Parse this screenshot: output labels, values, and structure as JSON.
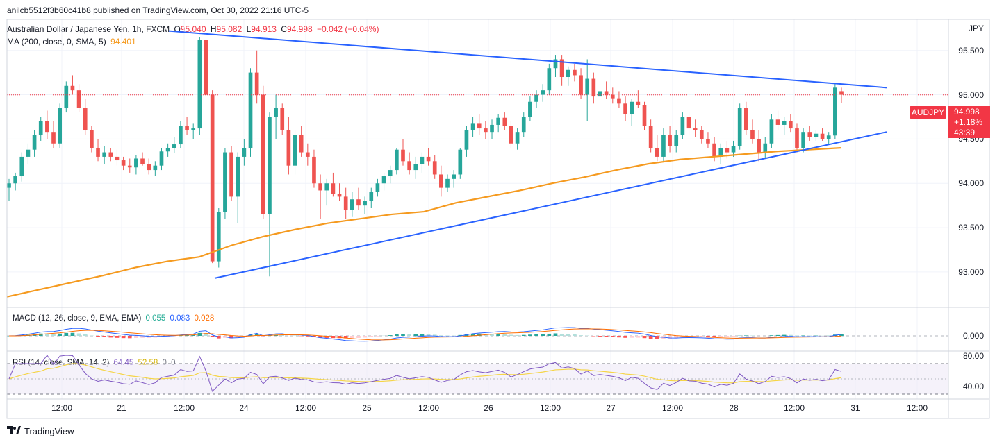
{
  "header": {
    "published": "anilcb5512f3b60c41b8 published on TradingView.com, Oct 30, 2022 21:16 UTC-5"
  },
  "legend": {
    "symbol": "Australian Dollar / Japanese Yen, 1h, FXCM",
    "o_label": "O",
    "o_value": "95.040",
    "h_label": "H",
    "h_value": "95.082",
    "l_label": "L",
    "l_value": "94.913",
    "c_label": "C",
    "c_value": "94.998",
    "change": "−0.042 (−0.04%)",
    "ma_label": "MA (200, close, 0, SMA, 5)",
    "ma_value": "94.401"
  },
  "macd_legend": {
    "label": "MACD (12, 26, close, 9, EMA, EMA)",
    "v1": "0.055",
    "v2": "0.083",
    "v3": "0.028"
  },
  "rsi_legend": {
    "label": "RSI (14, close, SMA, 14, 2)",
    "v1": "64.45",
    "v2": "52.58",
    "v3": "0",
    "v4": "0"
  },
  "price_axis": {
    "currency": "JPY",
    "ticks": [
      "95.500",
      "95.000",
      "94.500",
      "94.000",
      "93.500",
      "93.000"
    ]
  },
  "macd_axis": {
    "ticks": [
      "0.000"
    ]
  },
  "rsi_axis": {
    "ticks": [
      "80.00",
      "40.00"
    ]
  },
  "time_axis": {
    "ticks": [
      "12:00",
      "21",
      "12:00",
      "24",
      "12:00",
      "25",
      "12:00",
      "26",
      "12:00",
      "27",
      "12:00",
      "28",
      "12:00",
      "31",
      "12:00"
    ]
  },
  "last_price": {
    "symbol_badge": "AUDJPY",
    "price": "94.998",
    "change_pct": "+1.18%",
    "countdown": "43:39"
  },
  "brand": {
    "name": "TradingView"
  },
  "colors": {
    "up": "#26a69a",
    "down": "#ef5350",
    "ma": "#f59a1f",
    "trendline": "#2962ff",
    "macd": "#2962ff",
    "signal": "#ff6d00",
    "rsi": "#7e57c2",
    "rsi_ma": "#f5d547",
    "badge": "#f23645"
  },
  "chart_data": {
    "type": "candlestick",
    "symbol": "AUDJPY",
    "timeframe": "1h",
    "ylim": [
      92.6,
      95.85
    ],
    "x_labels": [
      "12:00",
      "21",
      "12:00",
      "24",
      "12:00",
      "25",
      "12:00",
      "26",
      "12:00",
      "27",
      "12:00",
      "28",
      "12:00",
      "31",
      "12:00"
    ],
    "candles": [
      [
        93.95,
        94.05,
        93.8,
        94.0
      ],
      [
        94.0,
        94.12,
        93.92,
        94.08
      ],
      [
        94.08,
        94.35,
        94.02,
        94.3
      ],
      [
        94.3,
        94.45,
        94.22,
        94.38
      ],
      [
        94.38,
        94.6,
        94.3,
        94.55
      ],
      [
        94.55,
        94.75,
        94.48,
        94.7
      ],
      [
        94.7,
        94.82,
        94.5,
        94.58
      ],
      [
        94.58,
        94.7,
        94.4,
        94.45
      ],
      [
        94.45,
        94.9,
        94.4,
        94.85
      ],
      [
        94.85,
        95.15,
        94.8,
        95.1
      ],
      [
        95.1,
        95.22,
        95.0,
        95.05
      ],
      [
        95.05,
        95.12,
        94.8,
        94.85
      ],
      [
        94.85,
        94.95,
        94.55,
        94.6
      ],
      [
        94.6,
        94.65,
        94.35,
        94.4
      ],
      [
        94.4,
        94.5,
        94.25,
        94.3
      ],
      [
        94.3,
        94.42,
        94.22,
        94.35
      ],
      [
        94.35,
        94.4,
        94.25,
        94.3
      ],
      [
        94.3,
        94.38,
        94.2,
        94.26
      ],
      [
        94.26,
        94.3,
        94.15,
        94.2
      ],
      [
        94.2,
        94.28,
        94.12,
        94.18
      ],
      [
        94.18,
        94.32,
        94.1,
        94.28
      ],
      [
        94.28,
        94.35,
        94.2,
        94.22
      ],
      [
        94.22,
        94.28,
        94.1,
        94.15
      ],
      [
        94.15,
        94.25,
        94.08,
        94.2
      ],
      [
        94.2,
        94.4,
        94.15,
        94.36
      ],
      [
        94.36,
        94.45,
        94.3,
        94.4
      ],
      [
        94.4,
        94.52,
        94.34,
        94.44
      ],
      [
        94.44,
        94.7,
        94.4,
        94.65
      ],
      [
        94.65,
        94.75,
        94.55,
        94.6
      ],
      [
        94.6,
        94.68,
        94.5,
        94.62
      ],
      [
        94.62,
        95.65,
        94.55,
        95.62
      ],
      [
        95.62,
        95.7,
        94.95,
        95.0
      ],
      [
        95.0,
        95.05,
        93.1,
        93.12
      ],
      [
        93.12,
        93.72,
        93.05,
        93.68
      ],
      [
        93.68,
        94.4,
        93.6,
        94.35
      ],
      [
        94.35,
        94.42,
        93.8,
        93.85
      ],
      [
        93.85,
        94.35,
        93.55,
        94.3
      ],
      [
        94.3,
        94.5,
        94.2,
        94.4
      ],
      [
        94.4,
        95.3,
        94.3,
        95.25
      ],
      [
        95.25,
        95.5,
        94.9,
        95.0
      ],
      [
        95.0,
        95.1,
        93.6,
        93.65
      ],
      [
        93.65,
        94.8,
        92.95,
        94.75
      ],
      [
        94.75,
        95.0,
        94.5,
        94.85
      ],
      [
        94.85,
        94.9,
        94.55,
        94.6
      ],
      [
        94.6,
        94.75,
        94.1,
        94.2
      ],
      [
        94.2,
        94.6,
        94.1,
        94.55
      ],
      [
        94.55,
        94.65,
        94.3,
        94.35
      ],
      [
        94.35,
        94.45,
        94.2,
        94.3
      ],
      [
        94.3,
        94.38,
        93.95,
        94.0
      ],
      [
        94.0,
        94.1,
        93.6,
        93.92
      ],
      [
        93.92,
        94.05,
        93.75,
        94.0
      ],
      [
        94.0,
        94.12,
        93.85,
        93.88
      ],
      [
        93.88,
        94.0,
        93.8,
        93.85
      ],
      [
        93.85,
        93.95,
        93.6,
        93.7
      ],
      [
        93.7,
        93.9,
        93.62,
        93.82
      ],
      [
        93.82,
        93.95,
        93.7,
        93.75
      ],
      [
        93.75,
        93.85,
        93.65,
        93.8
      ],
      [
        93.8,
        93.95,
        93.72,
        93.9
      ],
      [
        93.9,
        94.05,
        93.85,
        94.0
      ],
      [
        94.0,
        94.12,
        93.92,
        94.08
      ],
      [
        94.08,
        94.2,
        94.0,
        94.15
      ],
      [
        94.15,
        94.4,
        94.1,
        94.38
      ],
      [
        94.38,
        94.5,
        94.2,
        94.25
      ],
      [
        94.25,
        94.35,
        94.1,
        94.15
      ],
      [
        94.15,
        94.3,
        94.05,
        94.22
      ],
      [
        94.22,
        94.35,
        94.12,
        94.3
      ],
      [
        94.3,
        94.4,
        94.2,
        94.25
      ],
      [
        94.25,
        94.32,
        94.05,
        94.1
      ],
      [
        94.1,
        94.2,
        93.85,
        93.95
      ],
      [
        93.95,
        94.1,
        93.9,
        94.05
      ],
      [
        94.05,
        94.15,
        93.95,
        94.1
      ],
      [
        94.1,
        94.4,
        94.05,
        94.38
      ],
      [
        94.38,
        94.65,
        94.3,
        94.6
      ],
      [
        94.6,
        94.75,
        94.52,
        94.68
      ],
      [
        94.68,
        94.78,
        94.55,
        94.62
      ],
      [
        94.62,
        94.7,
        94.5,
        94.58
      ],
      [
        94.58,
        94.72,
        94.5,
        94.66
      ],
      [
        94.66,
        94.78,
        94.58,
        94.74
      ],
      [
        94.74,
        94.8,
        94.6,
        94.65
      ],
      [
        94.65,
        94.7,
        94.4,
        94.45
      ],
      [
        94.45,
        94.62,
        94.38,
        94.58
      ],
      [
        94.58,
        94.8,
        94.52,
        94.75
      ],
      [
        94.75,
        94.98,
        94.7,
        94.92
      ],
      [
        94.92,
        95.05,
        94.85,
        95.0
      ],
      [
        95.0,
        95.12,
        94.92,
        95.05
      ],
      [
        95.05,
        95.35,
        95.0,
        95.3
      ],
      [
        95.3,
        95.45,
        95.2,
        95.4
      ],
      [
        95.4,
        95.45,
        95.1,
        95.2
      ],
      [
        95.2,
        95.32,
        95.1,
        95.28
      ],
      [
        95.28,
        95.35,
        95.15,
        95.22
      ],
      [
        95.22,
        95.3,
        94.95,
        95.0
      ],
      [
        95.0,
        95.4,
        94.7,
        95.18
      ],
      [
        95.18,
        95.25,
        94.9,
        94.98
      ],
      [
        94.98,
        95.1,
        94.88,
        95.04
      ],
      [
        95.04,
        95.15,
        94.95,
        95.0
      ],
      [
        95.0,
        95.08,
        94.9,
        94.96
      ],
      [
        94.96,
        95.04,
        94.85,
        94.9
      ],
      [
        94.9,
        94.98,
        94.7,
        94.78
      ],
      [
        94.78,
        94.95,
        94.65,
        94.92
      ],
      [
        94.92,
        95.05,
        94.85,
        94.88
      ],
      [
        94.88,
        94.92,
        94.6,
        94.65
      ],
      [
        94.65,
        94.72,
        94.35,
        94.4
      ],
      [
        94.4,
        94.55,
        94.25,
        94.3
      ],
      [
        94.3,
        94.62,
        94.25,
        94.55
      ],
      [
        94.55,
        94.65,
        94.35,
        94.42
      ],
      [
        94.42,
        94.6,
        94.35,
        94.55
      ],
      [
        94.55,
        94.8,
        94.5,
        94.75
      ],
      [
        94.75,
        94.8,
        94.55,
        94.62
      ],
      [
        94.62,
        94.72,
        94.52,
        94.6
      ],
      [
        94.6,
        94.65,
        94.45,
        94.5
      ],
      [
        94.5,
        94.58,
        94.4,
        94.45
      ],
      [
        94.45,
        94.52,
        94.25,
        94.3
      ],
      [
        94.3,
        94.45,
        94.22,
        94.4
      ],
      [
        94.4,
        94.48,
        94.28,
        94.35
      ],
      [
        94.35,
        94.48,
        94.3,
        94.42
      ],
      [
        94.42,
        94.9,
        94.38,
        94.85
      ],
      [
        94.85,
        94.92,
        94.55,
        94.6
      ],
      [
        94.6,
        94.72,
        94.45,
        94.5
      ],
      [
        94.5,
        94.6,
        94.25,
        94.35
      ],
      [
        94.35,
        94.52,
        94.28,
        94.45
      ],
      [
        94.45,
        94.78,
        94.4,
        94.72
      ],
      [
        94.72,
        94.82,
        94.6,
        94.66
      ],
      [
        94.66,
        94.75,
        94.55,
        94.7
      ],
      [
        94.7,
        94.78,
        94.58,
        94.62
      ],
      [
        94.62,
        94.68,
        94.35,
        94.4
      ],
      [
        94.4,
        94.62,
        94.35,
        94.58
      ],
      [
        94.58,
        94.65,
        94.48,
        94.52
      ],
      [
        94.52,
        94.6,
        94.48,
        94.56
      ],
      [
        94.56,
        94.62,
        94.48,
        94.5
      ],
      [
        94.5,
        94.58,
        94.44,
        94.54
      ],
      [
        94.54,
        95.12,
        94.5,
        95.08
      ],
      [
        95.04,
        95.08,
        94.91,
        95.0
      ]
    ],
    "ma": [
      92.72,
      92.8,
      92.88,
      92.96,
      93.05,
      93.12,
      93.17,
      93.3,
      93.4,
      93.48,
      93.55,
      93.6,
      93.65,
      93.68,
      93.78,
      93.85,
      93.92,
      94.0,
      94.07,
      94.15,
      94.22,
      94.27,
      94.3,
      94.33,
      94.36,
      94.38,
      94.4
    ],
    "trendlines": [
      {
        "from": [
          95.72
        ],
        "to": [
          95.08
        ]
      },
      {
        "from": [
          92.93
        ],
        "to": [
          94.58
        ]
      }
    ],
    "last_close": 94.998
  }
}
